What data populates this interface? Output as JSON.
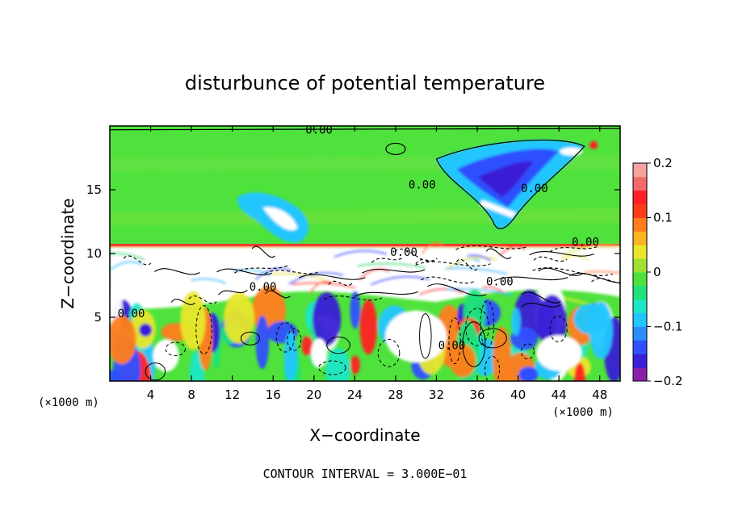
{
  "chart_data": {
    "type": "heatmap",
    "title": "disturbunce of potential temperature",
    "xlabel": "X−coordinate",
    "ylabel": "Z−coordinate",
    "x_unit_left": "(×1000 m)",
    "x_unit_right": "(×1000 m)",
    "footer": "CONTOUR INTERVAL = 3.000E−01",
    "xlim": [
      0,
      50
    ],
    "ylim": [
      0,
      20
    ],
    "x_ticks": [
      {
        "v": 4,
        "label": "4"
      },
      {
        "v": 8,
        "label": "8"
      },
      {
        "v": 12,
        "label": "12"
      },
      {
        "v": 16,
        "label": "16"
      },
      {
        "v": 20,
        "label": "20"
      },
      {
        "v": 24,
        "label": "24"
      },
      {
        "v": 28,
        "label": "28"
      },
      {
        "v": 32,
        "label": "32"
      },
      {
        "v": 36,
        "label": "36"
      },
      {
        "v": 40,
        "label": "40"
      },
      {
        "v": 44,
        "label": "44"
      },
      {
        "v": 48,
        "label": "48"
      }
    ],
    "y_ticks": [
      {
        "v": 5,
        "label": "5"
      },
      {
        "v": 10,
        "label": "10"
      },
      {
        "v": 15,
        "label": "15"
      }
    ],
    "colorbar": {
      "range": [
        -0.2,
        0.2
      ],
      "ticks": [
        {
          "v": 0.2,
          "label": "0.2"
        },
        {
          "v": 0.1,
          "label": "0.1"
        },
        {
          "v": 0,
          "label": "0"
        },
        {
          "v": -0.1,
          "label": "−0.1"
        },
        {
          "v": -0.2,
          "label": "−0.2"
        }
      ],
      "colors": [
        "#8b1fa8",
        "#3a1fd6",
        "#2f50ff",
        "#2f8cff",
        "#21c6ff",
        "#1fe6c4",
        "#1ee37a",
        "#4fe23c",
        "#a3e030",
        "#e8e72a",
        "#ffb21f",
        "#ff7d1a",
        "#ff3c1a",
        "#ff2222",
        "#f26b6b",
        "#f7a1a1"
      ]
    },
    "contour_labels": [
      {
        "x": 20.5,
        "y": 19.4,
        "text": "0.00"
      },
      {
        "x": 30.6,
        "y": 15.1,
        "text": "0.00"
      },
      {
        "x": 41.6,
        "y": 14.8,
        "text": "0.00"
      },
      {
        "x": 28.8,
        "y": 9.8,
        "text": "0.00"
      },
      {
        "x": 46.6,
        "y": 10.6,
        "text": "0.00"
      },
      {
        "x": 15.0,
        "y": 7.1,
        "text": "0.00"
      },
      {
        "x": 38.2,
        "y": 7.5,
        "text": "0.00"
      },
      {
        "x": 2.1,
        "y": 5.0,
        "text": "0.00"
      },
      {
        "x": 33.5,
        "y": 2.5,
        "text": "0.00"
      }
    ],
    "regions": {
      "stratosphere_z_range": [
        10.6,
        20
      ],
      "stratosphere_anomaly": "near 0",
      "turbulent_layer_z_range": [
        5,
        10.6
      ],
      "lower_layer_z_range": [
        0,
        5
      ]
    }
  }
}
